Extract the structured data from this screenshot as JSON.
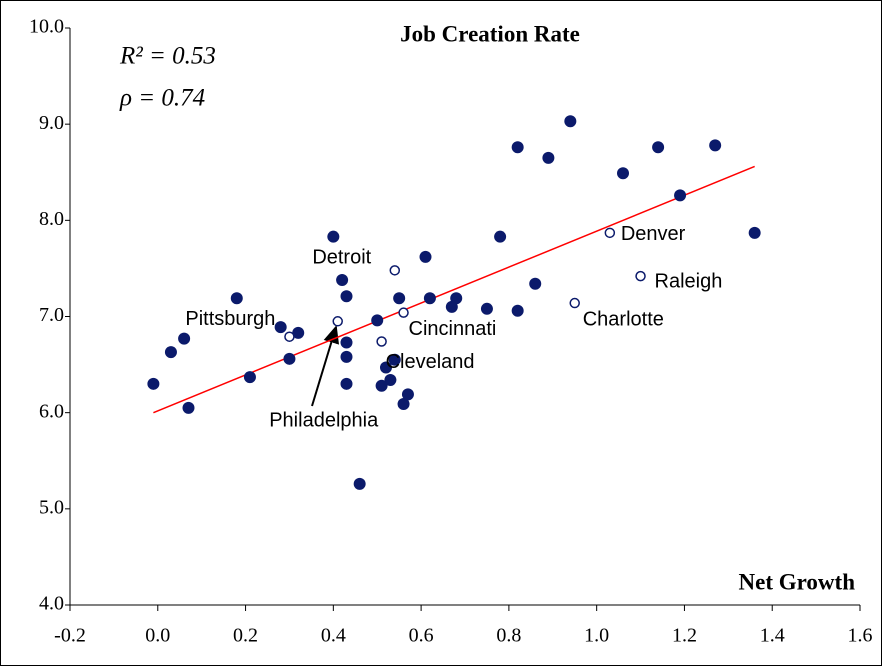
{
  "chart_data": {
    "type": "scatter",
    "title": "Job Creation Rate",
    "x_label": "Net Growth",
    "annotations": [
      "R² = 0.53",
      "ρ = 0.74"
    ],
    "xlim": [
      -0.2,
      1.6
    ],
    "ylim": [
      4.0,
      10.0
    ],
    "xticks": [
      {
        "value": -0.2,
        "label": "-0.2"
      },
      {
        "value": 0,
        "label": "0.0"
      },
      0.2,
      0.4,
      0.6,
      0.8,
      {
        "value": 1,
        "label": "1.0"
      },
      1.2,
      1.4,
      1.6
    ],
    "yticks": [
      {
        "value": 4,
        "label": "4.0"
      },
      {
        "value": 5,
        "label": "5.0"
      },
      {
        "value": 6,
        "label": "6.0"
      },
      {
        "value": 7,
        "label": "7.0"
      },
      {
        "value": 8,
        "label": "8.0"
      },
      {
        "value": 9,
        "label": "9.0"
      },
      {
        "value": 10,
        "label": "10.0"
      }
    ],
    "series": [
      {
        "color": "#0b1a6b",
        "marker": "filled",
        "x": [
          -0.01,
          0.03,
          0.06,
          0.07,
          0.18,
          0.21,
          0.28,
          0.3,
          0.32,
          0.4,
          0.43,
          0.43,
          0.43,
          0.43,
          0.42,
          0.5,
          0.52,
          0.51,
          0.53,
          0.54,
          0.55,
          0.56,
          0.57,
          0.46,
          0.61,
          0.62,
          0.68,
          0.67,
          0.75,
          0.78,
          0.82,
          0.82,
          0.86,
          0.89,
          0.94,
          1.06,
          1.14,
          1.19,
          1.27,
          1.36
        ],
        "values": [
          6.3,
          6.63,
          6.77,
          6.05,
          7.19,
          6.37,
          6.89,
          6.56,
          6.83,
          7.83,
          7.21,
          6.73,
          6.58,
          6.3,
          7.38,
          6.96,
          6.47,
          6.28,
          6.34,
          6.55,
          7.19,
          6.09,
          6.19,
          5.26,
          7.62,
          7.19,
          7.19,
          7.1,
          7.08,
          7.83,
          7.06,
          8.76,
          7.34,
          8.65,
          9.03,
          8.49,
          8.76,
          8.26,
          8.78,
          7.87
        ]
      },
      {
        "color": "#0b1a6b",
        "marker": "open",
        "labels": [
          "Pittsburgh",
          "Philadelphia",
          "Detroit",
          "Cincinnati",
          "Cleveland",
          "Charlotte",
          "Raleigh",
          "Denver"
        ],
        "x": [
          0.3,
          0.41,
          0.54,
          0.56,
          0.51,
          0.95,
          1.1,
          1.03
        ],
        "values": [
          6.79,
          6.95,
          7.48,
          7.04,
          6.74,
          7.14,
          7.42,
          7.87
        ]
      }
    ],
    "trendline": {
      "color": "#ff0000",
      "x": [
        -0.01,
        1.36
      ],
      "values": [
        6.0,
        8.56
      ]
    }
  }
}
